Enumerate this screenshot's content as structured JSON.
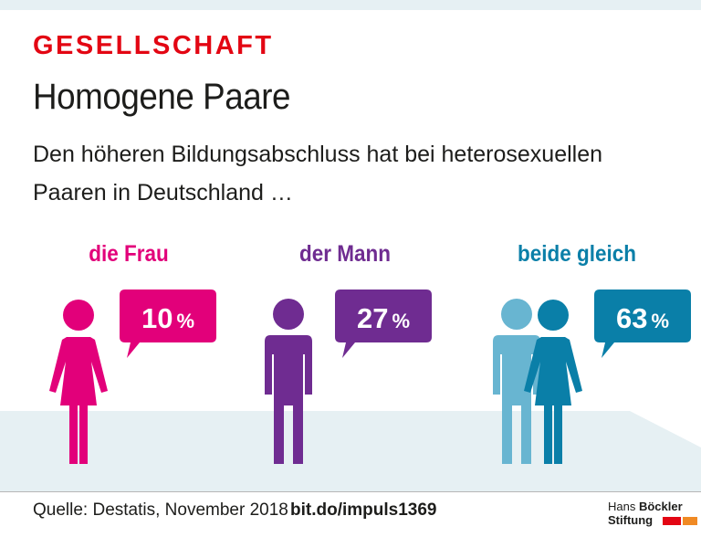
{
  "header": {
    "kicker": "GESELLSCHAFT",
    "title": "Homogene Paare",
    "subtitle": "Den höheren Bildungsabschluss hat bei heterosexuellen Paaren in Deutschland …"
  },
  "chart_data": {
    "type": "pictogram",
    "title": "Homogene Paare",
    "categories": [
      "die Frau",
      "der Mann",
      "beide gleich"
    ],
    "values": [
      10,
      27,
      63
    ],
    "value_labels": [
      "10 %",
      "27 %",
      "63 %"
    ],
    "unit": "%",
    "colors": [
      "#e2007a",
      "#6f2c91",
      "#0a7fa8"
    ],
    "secondary_color": "#68b5d1"
  },
  "footer": {
    "source": "Quelle: Destatis, November 2018",
    "link": "bit.do/impuls1369",
    "logo_line1_light": "Hans ",
    "logo_line1_bold": "Böckler",
    "logo_line2": "Stiftung"
  },
  "colors": {
    "accent_red": "#e30613",
    "floor": "#e6f0f3",
    "logo_bar_1": "#e30613",
    "logo_bar_2": "#f08a24"
  }
}
